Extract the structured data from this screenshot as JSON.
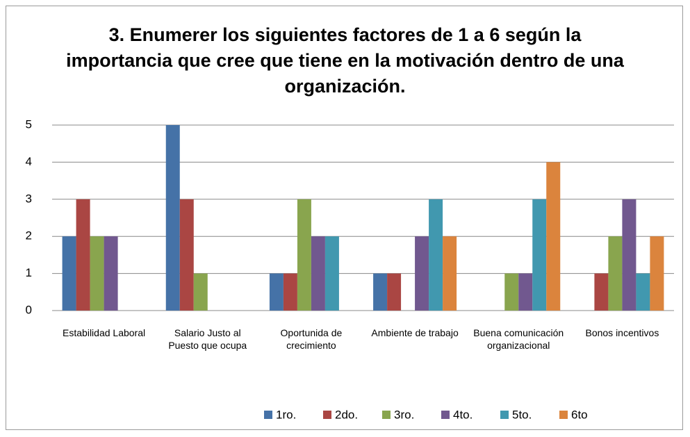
{
  "chart_data": {
    "type": "bar",
    "title": "3. Enumerer los siguientes factores de 1 a 6 según la importancia que cree que tiene en la motivación dentro de una organización.",
    "categories": [
      "Estabilidad Laboral",
      "Salario Justo al Puesto que ocupa",
      "Oportunida de crecimiento",
      "Ambiente de trabajo",
      "Buena comunicación organizacional",
      "Bonos incentivos"
    ],
    "series": [
      {
        "name": "1ro.",
        "color": "#4572a7",
        "values": [
          2,
          5,
          1,
          1,
          0,
          0
        ]
      },
      {
        "name": "2do.",
        "color": "#aa4643",
        "values": [
          3,
          3,
          1,
          1,
          0,
          1
        ]
      },
      {
        "name": "3ro.",
        "color": "#89a54e",
        "values": [
          2,
          1,
          3,
          0,
          1,
          2
        ]
      },
      {
        "name": "4to.",
        "color": "#71588f",
        "values": [
          2,
          0,
          2,
          2,
          1,
          3
        ]
      },
      {
        "name": "5to.",
        "color": "#4198af",
        "values": [
          0,
          0,
          2,
          3,
          3,
          1
        ]
      },
      {
        "name": "6to",
        "color": "#db843d",
        "values": [
          0,
          0,
          0,
          2,
          4,
          2
        ]
      }
    ],
    "ylim": [
      0,
      5
    ],
    "yticks": [
      0,
      1,
      2,
      3,
      4,
      5
    ],
    "grid": true,
    "legend": "bottom"
  }
}
